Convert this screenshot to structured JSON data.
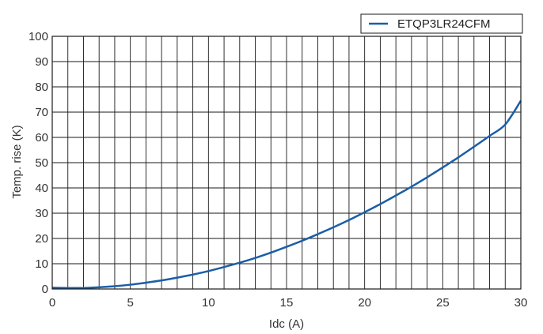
{
  "chart_data": {
    "type": "line",
    "xlabel": "Idc (A)",
    "ylabel": "Temp. rise (K)",
    "xlim": [
      0,
      30
    ],
    "ylim": [
      0,
      100
    ],
    "x_ticks": [
      0,
      5,
      10,
      15,
      20,
      25,
      30
    ],
    "y_ticks": [
      0,
      10,
      20,
      30,
      40,
      50,
      60,
      70,
      80,
      90,
      100
    ],
    "x_minor_step": 1,
    "grid": true,
    "legend_position": "top-right",
    "series": [
      {
        "name": "ETQP3LR24CFM",
        "color": "#1a5ea8",
        "x": [
          0,
          1,
          2,
          3,
          4,
          5,
          6,
          7,
          8,
          9,
          10,
          11,
          12,
          13,
          14,
          15,
          16,
          17,
          18,
          19,
          20,
          21,
          22,
          23,
          24,
          25,
          26,
          27,
          28,
          29,
          30
        ],
        "y": [
          0.5,
          0.4,
          0.4,
          0.7,
          1.1,
          1.7,
          2.5,
          3.4,
          4.5,
          5.7,
          7.1,
          8.7,
          10.4,
          12.3,
          14.4,
          16.7,
          19.1,
          21.7,
          24.4,
          27.3,
          30.4,
          33.6,
          37.0,
          40.5,
          44.2,
          48.1,
          52.1,
          56.3,
          60.6,
          65.1,
          74.5
        ]
      }
    ]
  }
}
